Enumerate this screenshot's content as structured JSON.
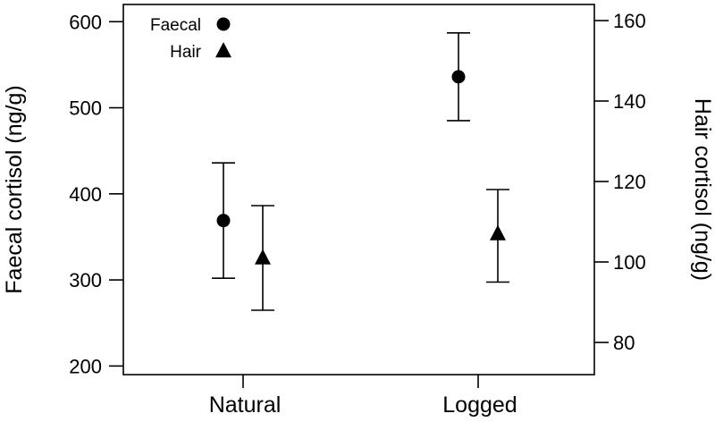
{
  "chart_data": {
    "type": "scatter",
    "title": "",
    "categories": [
      "Natural",
      "Logged"
    ],
    "y_left": {
      "label": "Faecal cortisol (ng/g)",
      "lim": [
        190,
        620
      ],
      "ticks": [
        200,
        300,
        400,
        500,
        600
      ]
    },
    "y_right": {
      "label": "Hair cortisol (ng/g)",
      "lim": [
        72,
        164
      ],
      "ticks": [
        80,
        100,
        120,
        140,
        160
      ]
    },
    "series": [
      {
        "name": "Faecal",
        "marker": "circle",
        "axis": "left",
        "values": [
          369,
          536
        ],
        "lower": [
          302,
          485
        ],
        "upper": [
          436,
          587
        ]
      },
      {
        "name": "Hair",
        "marker": "triangle",
        "axis": "right",
        "values": [
          101,
          107
        ],
        "lower": [
          88,
          95
        ],
        "upper": [
          114,
          118
        ]
      }
    ],
    "legend_position": "top-left",
    "grid": false
  }
}
